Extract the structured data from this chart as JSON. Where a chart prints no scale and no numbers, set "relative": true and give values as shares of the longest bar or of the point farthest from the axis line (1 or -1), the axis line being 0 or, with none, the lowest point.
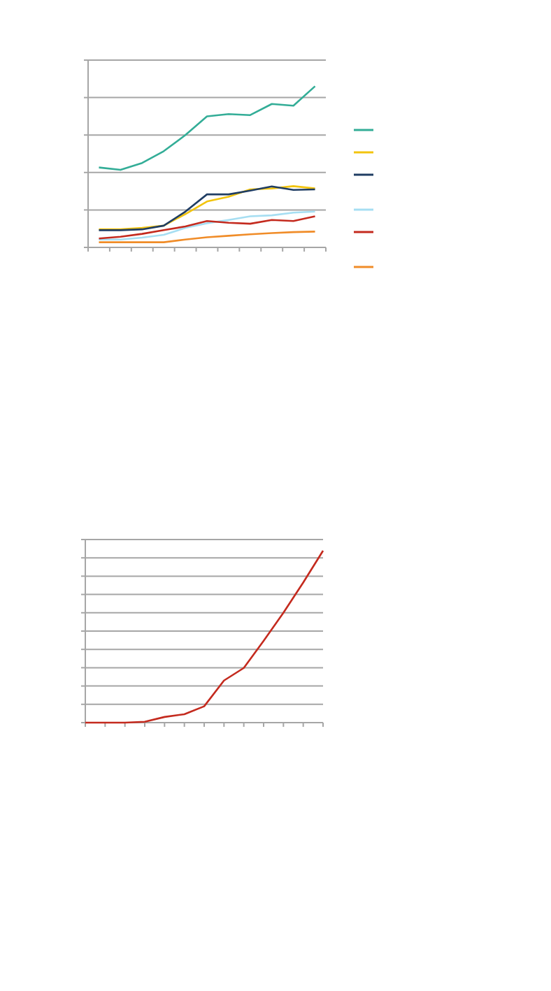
{
  "chart_data": [
    {
      "type": "line",
      "relative": true,
      "grid": true,
      "categories": [
        null,
        null,
        null,
        null,
        null,
        null,
        null,
        null,
        null,
        null,
        null
      ],
      "series": [
        {
          "color": "#33ad97",
          "values": [
            0.496,
            0.481,
            0.524,
            0.597,
            0.697,
            0.813,
            0.827,
            0.821,
            0.89,
            0.879,
            1
          ]
        },
        {
          "color": "#f2c40f",
          "values": [
            0.112,
            0.112,
            0.121,
            0.135,
            0.207,
            0.285,
            0.314,
            0.36,
            0.366,
            0.38,
            0.366
          ]
        },
        {
          "color": "#1f3d63",
          "values": [
            0.107,
            0.107,
            0.112,
            0.135,
            0.222,
            0.329,
            0.329,
            0.352,
            0.378,
            0.357,
            0.36
          ]
        },
        {
          "color": "#a6def2",
          "values": [
            0.049,
            0.049,
            0.061,
            0.078,
            0.121,
            0.15,
            0.17,
            0.193,
            0.199,
            0.216,
            0.222
          ]
        },
        {
          "color": "#c42a1e",
          "values": [
            0.055,
            0.066,
            0.084,
            0.107,
            0.13,
            0.164,
            0.153,
            0.147,
            0.17,
            0.164,
            0.193
          ]
        },
        {
          "color": "#f08c28",
          "values": [
            0.032,
            0.032,
            0.032,
            0.032,
            0.049,
            0.063,
            0.072,
            0.081,
            0.089,
            0.095,
            0.098
          ]
        }
      ]
    },
    {
      "type": "line",
      "relative": true,
      "grid": true,
      "categories": [
        null,
        null,
        null,
        null,
        null,
        null,
        null,
        null,
        null,
        null,
        null,
        null,
        null
      ],
      "series": [
        {
          "color": "#c42a1e",
          "values": [
            0,
            0,
            0,
            0.005,
            0.033,
            0.049,
            0.095,
            0.245,
            0.318,
            0.476,
            0.639,
            0.815,
            1
          ]
        }
      ]
    }
  ]
}
